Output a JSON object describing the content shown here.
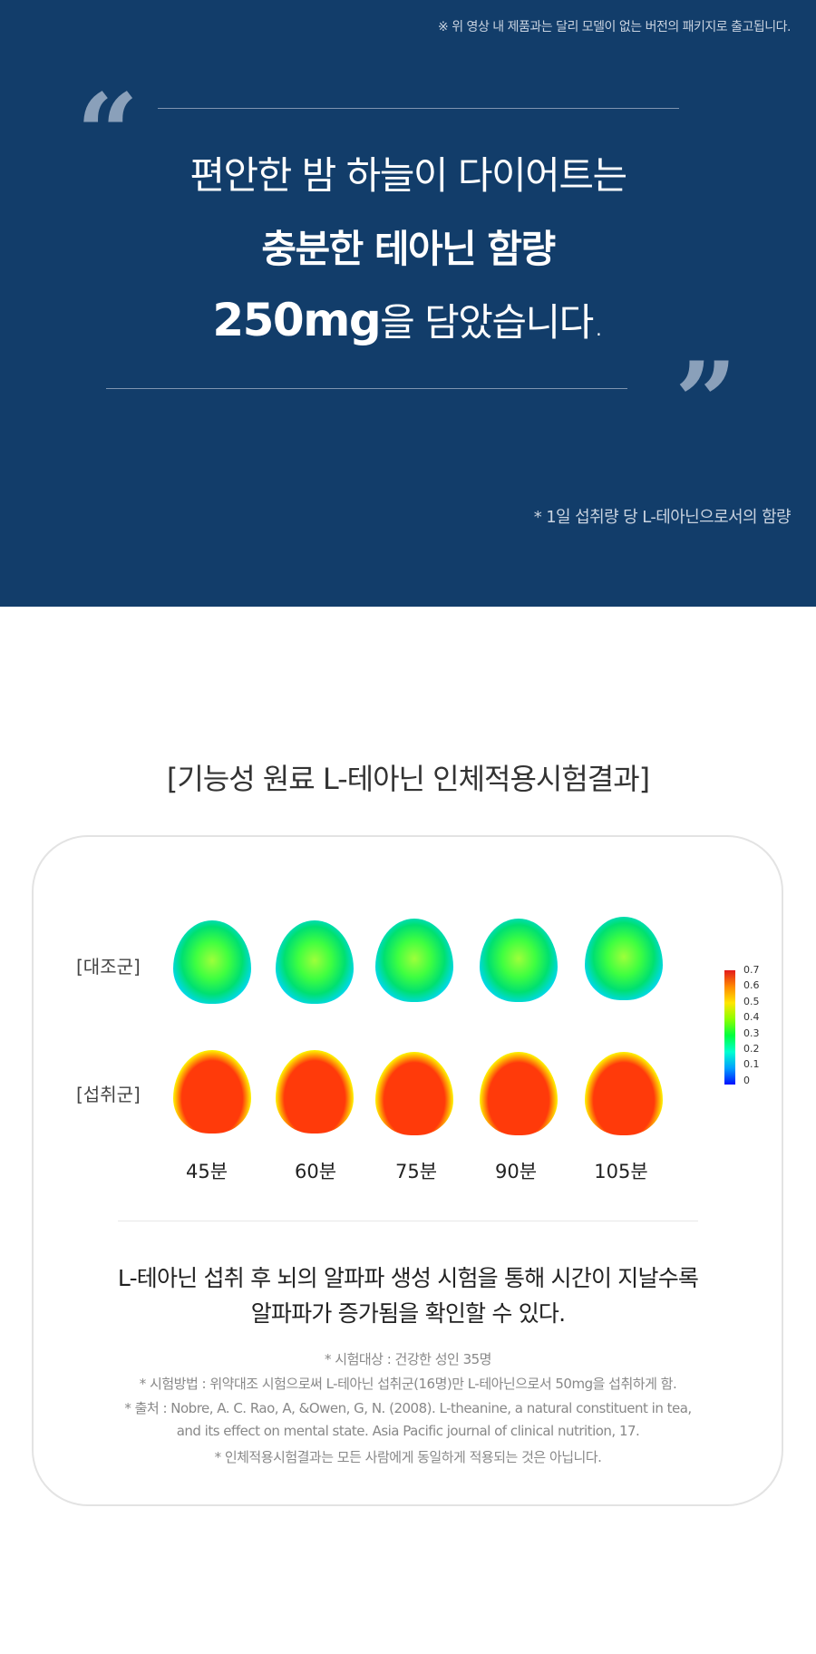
{
  "notice": "※ 위 영상 내 제품과는 달리 모델이 없는 버전의 패키지로 출고됩니다.",
  "quote": {
    "line1": "편안한 밤 하늘이 다이어트는",
    "line2": "충분한 테아닌 함량",
    "line3_bold": "250mg",
    "line3_rest": "을 담았습니다."
  },
  "quote_note": "* 1일 섭취량 당 L-테아닌으로서의 함량",
  "section_title": "[기능성 원료 L-테아닌 인체적용시험결과]",
  "figure": {
    "rows": [
      "[대조군]",
      "[섭취군]"
    ],
    "times": [
      "45분",
      "60분",
      "75분",
      "90분",
      "105분"
    ],
    "scale_ticks": [
      "0.7",
      "0.6",
      "0.5",
      "0.4",
      "0.3",
      "0.2",
      "0.1",
      "0"
    ]
  },
  "description": [
    "L-테아닌 섭취 후 뇌의 알파파 생성 시험을 통해 시간이 지날수록",
    "알파파가 증가됨을 확인할 수 있다."
  ],
  "footnotes": [
    "* 시험대상 : 건강한 성인 35명",
    "* 시험방법 : 위약대조 시험으로써 L-테아닌 섭취군(16명)만 L-테아닌으로서 50mg을 섭취하게 함.",
    "* 출처 : Nobre, A. C. Rao, A, &Owen, G, N. (2008). L-theanine, a natural constituent in tea,",
    "and its effect on mental state. Asia Pacific journal of clinical nutrition, 17.",
    "* 인체적용시험결과는 모든 사람에게 동일하게 적용되는 것은 아닙니다."
  ]
}
